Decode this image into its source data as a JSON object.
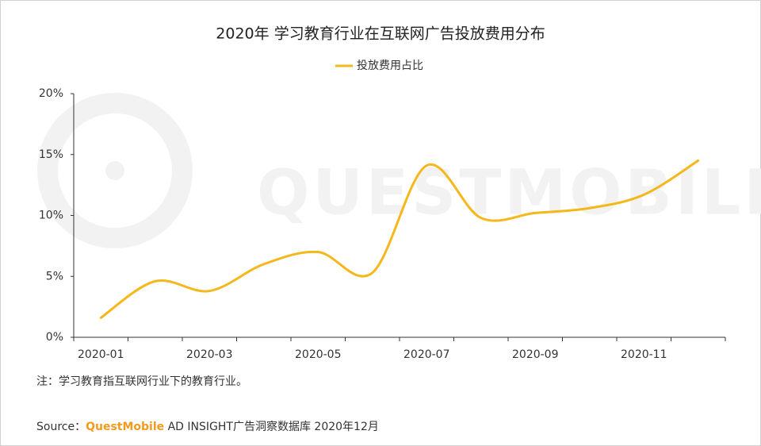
{
  "chart_data": {
    "type": "line",
    "title": "2020年 学习教育行业在互联网广告投放费用分布",
    "categories": [
      "2020-01",
      null,
      "2020-03",
      null,
      "2020-05",
      null,
      "2020-07",
      null,
      "2020-09",
      null,
      "2020-11",
      null
    ],
    "series": [
      {
        "name": "投放费用占比",
        "color": "#f5b81c",
        "values": [
          1.6,
          4.6,
          3.8,
          6.0,
          7.0,
          5.3,
          14.1,
          9.8,
          10.2,
          10.6,
          11.7,
          14.5
        ]
      }
    ],
    "ylim": [
      0,
      20
    ],
    "yticks": [
      {
        "value": 0,
        "label": "0%"
      },
      {
        "value": 5,
        "label": "5%"
      },
      {
        "value": 10,
        "label": "10%"
      },
      {
        "value": 15,
        "label": "15%"
      },
      {
        "value": 20,
        "label": "20%"
      }
    ],
    "legend": "top",
    "watermark": "QUESTMOBILE",
    "note": "注：学习教育指互联网行业下的教育行业。",
    "source": {
      "prefix": "Source：",
      "brand": "QuestMobile",
      "text": " AD INSIGHT广告洞察数据库 2020年12月"
    }
  }
}
